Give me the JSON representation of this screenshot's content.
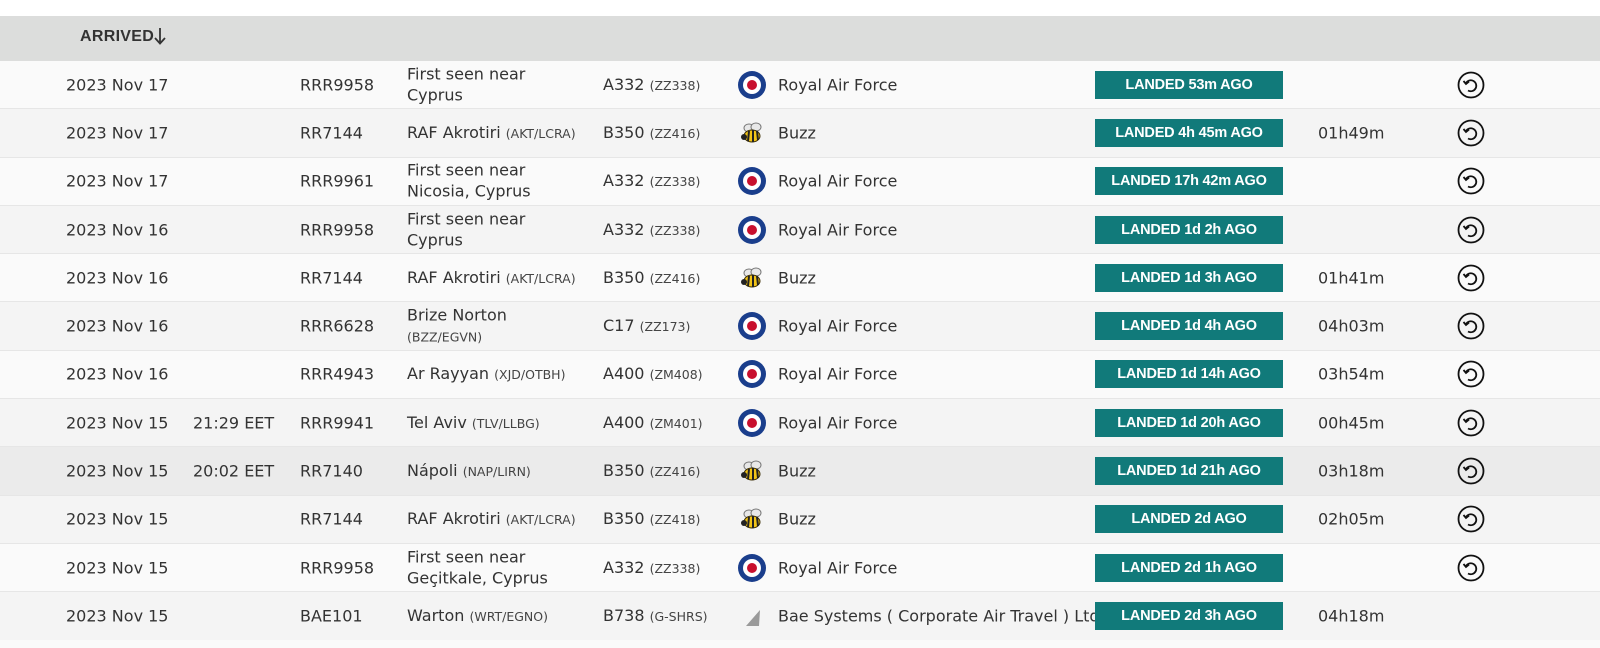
{
  "table": {
    "header": {
      "label": "ARRIVED",
      "sort_icon": "arrow-down-icon"
    },
    "rows": [
      {
        "date": "2023 Nov 17",
        "time": "",
        "flight": "RRR9958",
        "from": "First seen near Cyprus",
        "from_code": "",
        "aircraft": "A332",
        "reg": "(ZZ338)",
        "airline_icon": "raf-roundel-icon",
        "airline": "Royal Air Force",
        "status": "LANDED 53m AGO",
        "duration": "",
        "track": true
      },
      {
        "date": "2023 Nov 17",
        "time": "",
        "flight": "RR7144",
        "from": "RAF Akrotiri",
        "from_code": "(AKT/LCRA)",
        "aircraft": "B350",
        "reg": "(ZZ416)",
        "airline_icon": "bee-icon",
        "airline": "Buzz",
        "status": "LANDED 4h 45m AGO",
        "duration": "01h49m",
        "track": true
      },
      {
        "date": "2023 Nov 17",
        "time": "",
        "flight": "RRR9961",
        "from": "First seen near Nicosia, Cyprus",
        "from_code": "",
        "aircraft": "A332",
        "reg": "(ZZ338)",
        "airline_icon": "raf-roundel-icon",
        "airline": "Royal Air Force",
        "status": "LANDED 17h 42m AGO",
        "duration": "",
        "track": true
      },
      {
        "date": "2023 Nov 16",
        "time": "",
        "flight": "RRR9958",
        "from": "First seen near Cyprus",
        "from_code": "",
        "aircraft": "A332",
        "reg": "(ZZ338)",
        "airline_icon": "raf-roundel-icon",
        "airline": "Royal Air Force",
        "status": "LANDED 1d 2h AGO",
        "duration": "",
        "track": true
      },
      {
        "date": "2023 Nov 16",
        "time": "",
        "flight": "RR7144",
        "from": "RAF Akrotiri",
        "from_code": "(AKT/LCRA)",
        "aircraft": "B350",
        "reg": "(ZZ416)",
        "airline_icon": "bee-icon",
        "airline": "Buzz",
        "status": "LANDED 1d 3h AGO",
        "duration": "01h41m",
        "track": true
      },
      {
        "date": "2023 Nov 16",
        "time": "",
        "flight": "RRR6628",
        "from": "Brize Norton",
        "from_code": "(BZZ/EGVN)",
        "aircraft": "C17",
        "reg": "(ZZ173)",
        "airline_icon": "raf-roundel-icon",
        "airline": "Royal Air Force",
        "status": "LANDED 1d 4h AGO",
        "duration": "04h03m",
        "track": true
      },
      {
        "date": "2023 Nov 16",
        "time": "",
        "flight": "RRR4943",
        "from": "Ar Rayyan",
        "from_code": "(XJD/OTBH)",
        "aircraft": "A400",
        "reg": "(ZM408)",
        "airline_icon": "raf-roundel-icon",
        "airline": "Royal Air Force",
        "status": "LANDED 1d 14h AGO",
        "duration": "03h54m",
        "track": true
      },
      {
        "date": "2023 Nov 15",
        "time": "21:29 EET",
        "flight": "RRR9941",
        "from": "Tel Aviv",
        "from_code": "(TLV/LLBG)",
        "aircraft": "A400",
        "reg": "(ZM401)",
        "airline_icon": "raf-roundel-icon",
        "airline": "Royal Air Force",
        "status": "LANDED 1d 20h AGO",
        "duration": "00h45m",
        "track": true
      },
      {
        "date": "2023 Nov 15",
        "time": "20:02 EET",
        "flight": "RR7140",
        "from": "Nápoli",
        "from_code": "(NAP/LIRN)",
        "aircraft": "B350",
        "reg": "(ZZ416)",
        "airline_icon": "bee-icon",
        "airline": "Buzz",
        "status": "LANDED 1d 21h AGO",
        "duration": "03h18m",
        "track": true
      },
      {
        "date": "2023 Nov 15",
        "time": "",
        "flight": "RR7144",
        "from": "RAF Akrotiri",
        "from_code": "(AKT/LCRA)",
        "aircraft": "B350",
        "reg": "(ZZ418)",
        "airline_icon": "bee-icon",
        "airline": "Buzz",
        "status": "LANDED 2d AGO",
        "duration": "02h05m",
        "track": true
      },
      {
        "date": "2023 Nov 15",
        "time": "",
        "flight": "RRR9958",
        "from": "First seen near Geçitkale, Cyprus",
        "from_code": "",
        "aircraft": "A332",
        "reg": "(ZZ338)",
        "airline_icon": "raf-roundel-icon",
        "airline": "Royal Air Force",
        "status": "LANDED 2d 1h AGO",
        "duration": "",
        "track": true
      },
      {
        "date": "2023 Nov 15",
        "time": "",
        "flight": "BAE101",
        "from": "Warton",
        "from_code": "(WRT/EGNO)",
        "aircraft": "B738",
        "reg": "(G-SHRS)",
        "airline_icon": "tail-fin-icon",
        "airline": "Bae Systems ( Corporate Air Travel ) Ltd",
        "status": "LANDED 2d 3h AGO",
        "duration": "04h18m",
        "track": false
      }
    ]
  },
  "colors": {
    "status_bg": "#117a7a",
    "header_bg": "#dcdddc",
    "roundel_blue": "#1a3e8c",
    "roundel_red": "#c8102e"
  }
}
